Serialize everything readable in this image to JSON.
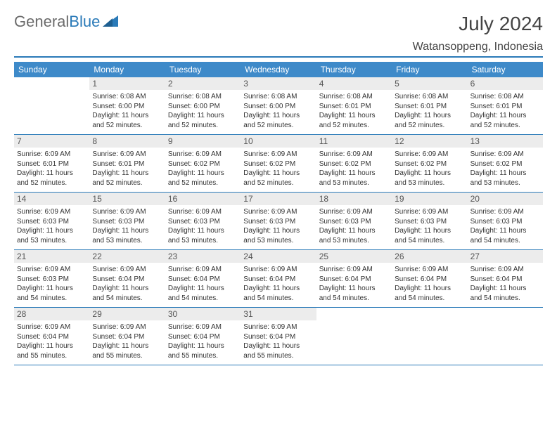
{
  "brand": {
    "part1": "General",
    "part2": "Blue"
  },
  "title": "July 2024",
  "location": "Watansoppeng, Indonesia",
  "colors": {
    "header_bg": "#3e8ac9",
    "accent": "#2a7ab8",
    "daynum_bg": "#ececec",
    "text": "#333333",
    "logo_gray": "#6b6b6b"
  },
  "day_names": [
    "Sunday",
    "Monday",
    "Tuesday",
    "Wednesday",
    "Thursday",
    "Friday",
    "Saturday"
  ],
  "weeks": [
    [
      null,
      {
        "n": "1",
        "sr": "Sunrise: 6:08 AM",
        "ss": "Sunset: 6:00 PM",
        "d1": "Daylight: 11 hours",
        "d2": "and 52 minutes."
      },
      {
        "n": "2",
        "sr": "Sunrise: 6:08 AM",
        "ss": "Sunset: 6:00 PM",
        "d1": "Daylight: 11 hours",
        "d2": "and 52 minutes."
      },
      {
        "n": "3",
        "sr": "Sunrise: 6:08 AM",
        "ss": "Sunset: 6:00 PM",
        "d1": "Daylight: 11 hours",
        "d2": "and 52 minutes."
      },
      {
        "n": "4",
        "sr": "Sunrise: 6:08 AM",
        "ss": "Sunset: 6:01 PM",
        "d1": "Daylight: 11 hours",
        "d2": "and 52 minutes."
      },
      {
        "n": "5",
        "sr": "Sunrise: 6:08 AM",
        "ss": "Sunset: 6:01 PM",
        "d1": "Daylight: 11 hours",
        "d2": "and 52 minutes."
      },
      {
        "n": "6",
        "sr": "Sunrise: 6:08 AM",
        "ss": "Sunset: 6:01 PM",
        "d1": "Daylight: 11 hours",
        "d2": "and 52 minutes."
      }
    ],
    [
      {
        "n": "7",
        "sr": "Sunrise: 6:09 AM",
        "ss": "Sunset: 6:01 PM",
        "d1": "Daylight: 11 hours",
        "d2": "and 52 minutes."
      },
      {
        "n": "8",
        "sr": "Sunrise: 6:09 AM",
        "ss": "Sunset: 6:01 PM",
        "d1": "Daylight: 11 hours",
        "d2": "and 52 minutes."
      },
      {
        "n": "9",
        "sr": "Sunrise: 6:09 AM",
        "ss": "Sunset: 6:02 PM",
        "d1": "Daylight: 11 hours",
        "d2": "and 52 minutes."
      },
      {
        "n": "10",
        "sr": "Sunrise: 6:09 AM",
        "ss": "Sunset: 6:02 PM",
        "d1": "Daylight: 11 hours",
        "d2": "and 52 minutes."
      },
      {
        "n": "11",
        "sr": "Sunrise: 6:09 AM",
        "ss": "Sunset: 6:02 PM",
        "d1": "Daylight: 11 hours",
        "d2": "and 53 minutes."
      },
      {
        "n": "12",
        "sr": "Sunrise: 6:09 AM",
        "ss": "Sunset: 6:02 PM",
        "d1": "Daylight: 11 hours",
        "d2": "and 53 minutes."
      },
      {
        "n": "13",
        "sr": "Sunrise: 6:09 AM",
        "ss": "Sunset: 6:02 PM",
        "d1": "Daylight: 11 hours",
        "d2": "and 53 minutes."
      }
    ],
    [
      {
        "n": "14",
        "sr": "Sunrise: 6:09 AM",
        "ss": "Sunset: 6:03 PM",
        "d1": "Daylight: 11 hours",
        "d2": "and 53 minutes."
      },
      {
        "n": "15",
        "sr": "Sunrise: 6:09 AM",
        "ss": "Sunset: 6:03 PM",
        "d1": "Daylight: 11 hours",
        "d2": "and 53 minutes."
      },
      {
        "n": "16",
        "sr": "Sunrise: 6:09 AM",
        "ss": "Sunset: 6:03 PM",
        "d1": "Daylight: 11 hours",
        "d2": "and 53 minutes."
      },
      {
        "n": "17",
        "sr": "Sunrise: 6:09 AM",
        "ss": "Sunset: 6:03 PM",
        "d1": "Daylight: 11 hours",
        "d2": "and 53 minutes."
      },
      {
        "n": "18",
        "sr": "Sunrise: 6:09 AM",
        "ss": "Sunset: 6:03 PM",
        "d1": "Daylight: 11 hours",
        "d2": "and 53 minutes."
      },
      {
        "n": "19",
        "sr": "Sunrise: 6:09 AM",
        "ss": "Sunset: 6:03 PM",
        "d1": "Daylight: 11 hours",
        "d2": "and 54 minutes."
      },
      {
        "n": "20",
        "sr": "Sunrise: 6:09 AM",
        "ss": "Sunset: 6:03 PM",
        "d1": "Daylight: 11 hours",
        "d2": "and 54 minutes."
      }
    ],
    [
      {
        "n": "21",
        "sr": "Sunrise: 6:09 AM",
        "ss": "Sunset: 6:03 PM",
        "d1": "Daylight: 11 hours",
        "d2": "and 54 minutes."
      },
      {
        "n": "22",
        "sr": "Sunrise: 6:09 AM",
        "ss": "Sunset: 6:04 PM",
        "d1": "Daylight: 11 hours",
        "d2": "and 54 minutes."
      },
      {
        "n": "23",
        "sr": "Sunrise: 6:09 AM",
        "ss": "Sunset: 6:04 PM",
        "d1": "Daylight: 11 hours",
        "d2": "and 54 minutes."
      },
      {
        "n": "24",
        "sr": "Sunrise: 6:09 AM",
        "ss": "Sunset: 6:04 PM",
        "d1": "Daylight: 11 hours",
        "d2": "and 54 minutes."
      },
      {
        "n": "25",
        "sr": "Sunrise: 6:09 AM",
        "ss": "Sunset: 6:04 PM",
        "d1": "Daylight: 11 hours",
        "d2": "and 54 minutes."
      },
      {
        "n": "26",
        "sr": "Sunrise: 6:09 AM",
        "ss": "Sunset: 6:04 PM",
        "d1": "Daylight: 11 hours",
        "d2": "and 54 minutes."
      },
      {
        "n": "27",
        "sr": "Sunrise: 6:09 AM",
        "ss": "Sunset: 6:04 PM",
        "d1": "Daylight: 11 hours",
        "d2": "and 54 minutes."
      }
    ],
    [
      {
        "n": "28",
        "sr": "Sunrise: 6:09 AM",
        "ss": "Sunset: 6:04 PM",
        "d1": "Daylight: 11 hours",
        "d2": "and 55 minutes."
      },
      {
        "n": "29",
        "sr": "Sunrise: 6:09 AM",
        "ss": "Sunset: 6:04 PM",
        "d1": "Daylight: 11 hours",
        "d2": "and 55 minutes."
      },
      {
        "n": "30",
        "sr": "Sunrise: 6:09 AM",
        "ss": "Sunset: 6:04 PM",
        "d1": "Daylight: 11 hours",
        "d2": "and 55 minutes."
      },
      {
        "n": "31",
        "sr": "Sunrise: 6:09 AM",
        "ss": "Sunset: 6:04 PM",
        "d1": "Daylight: 11 hours",
        "d2": "and 55 minutes."
      },
      null,
      null,
      null
    ]
  ]
}
